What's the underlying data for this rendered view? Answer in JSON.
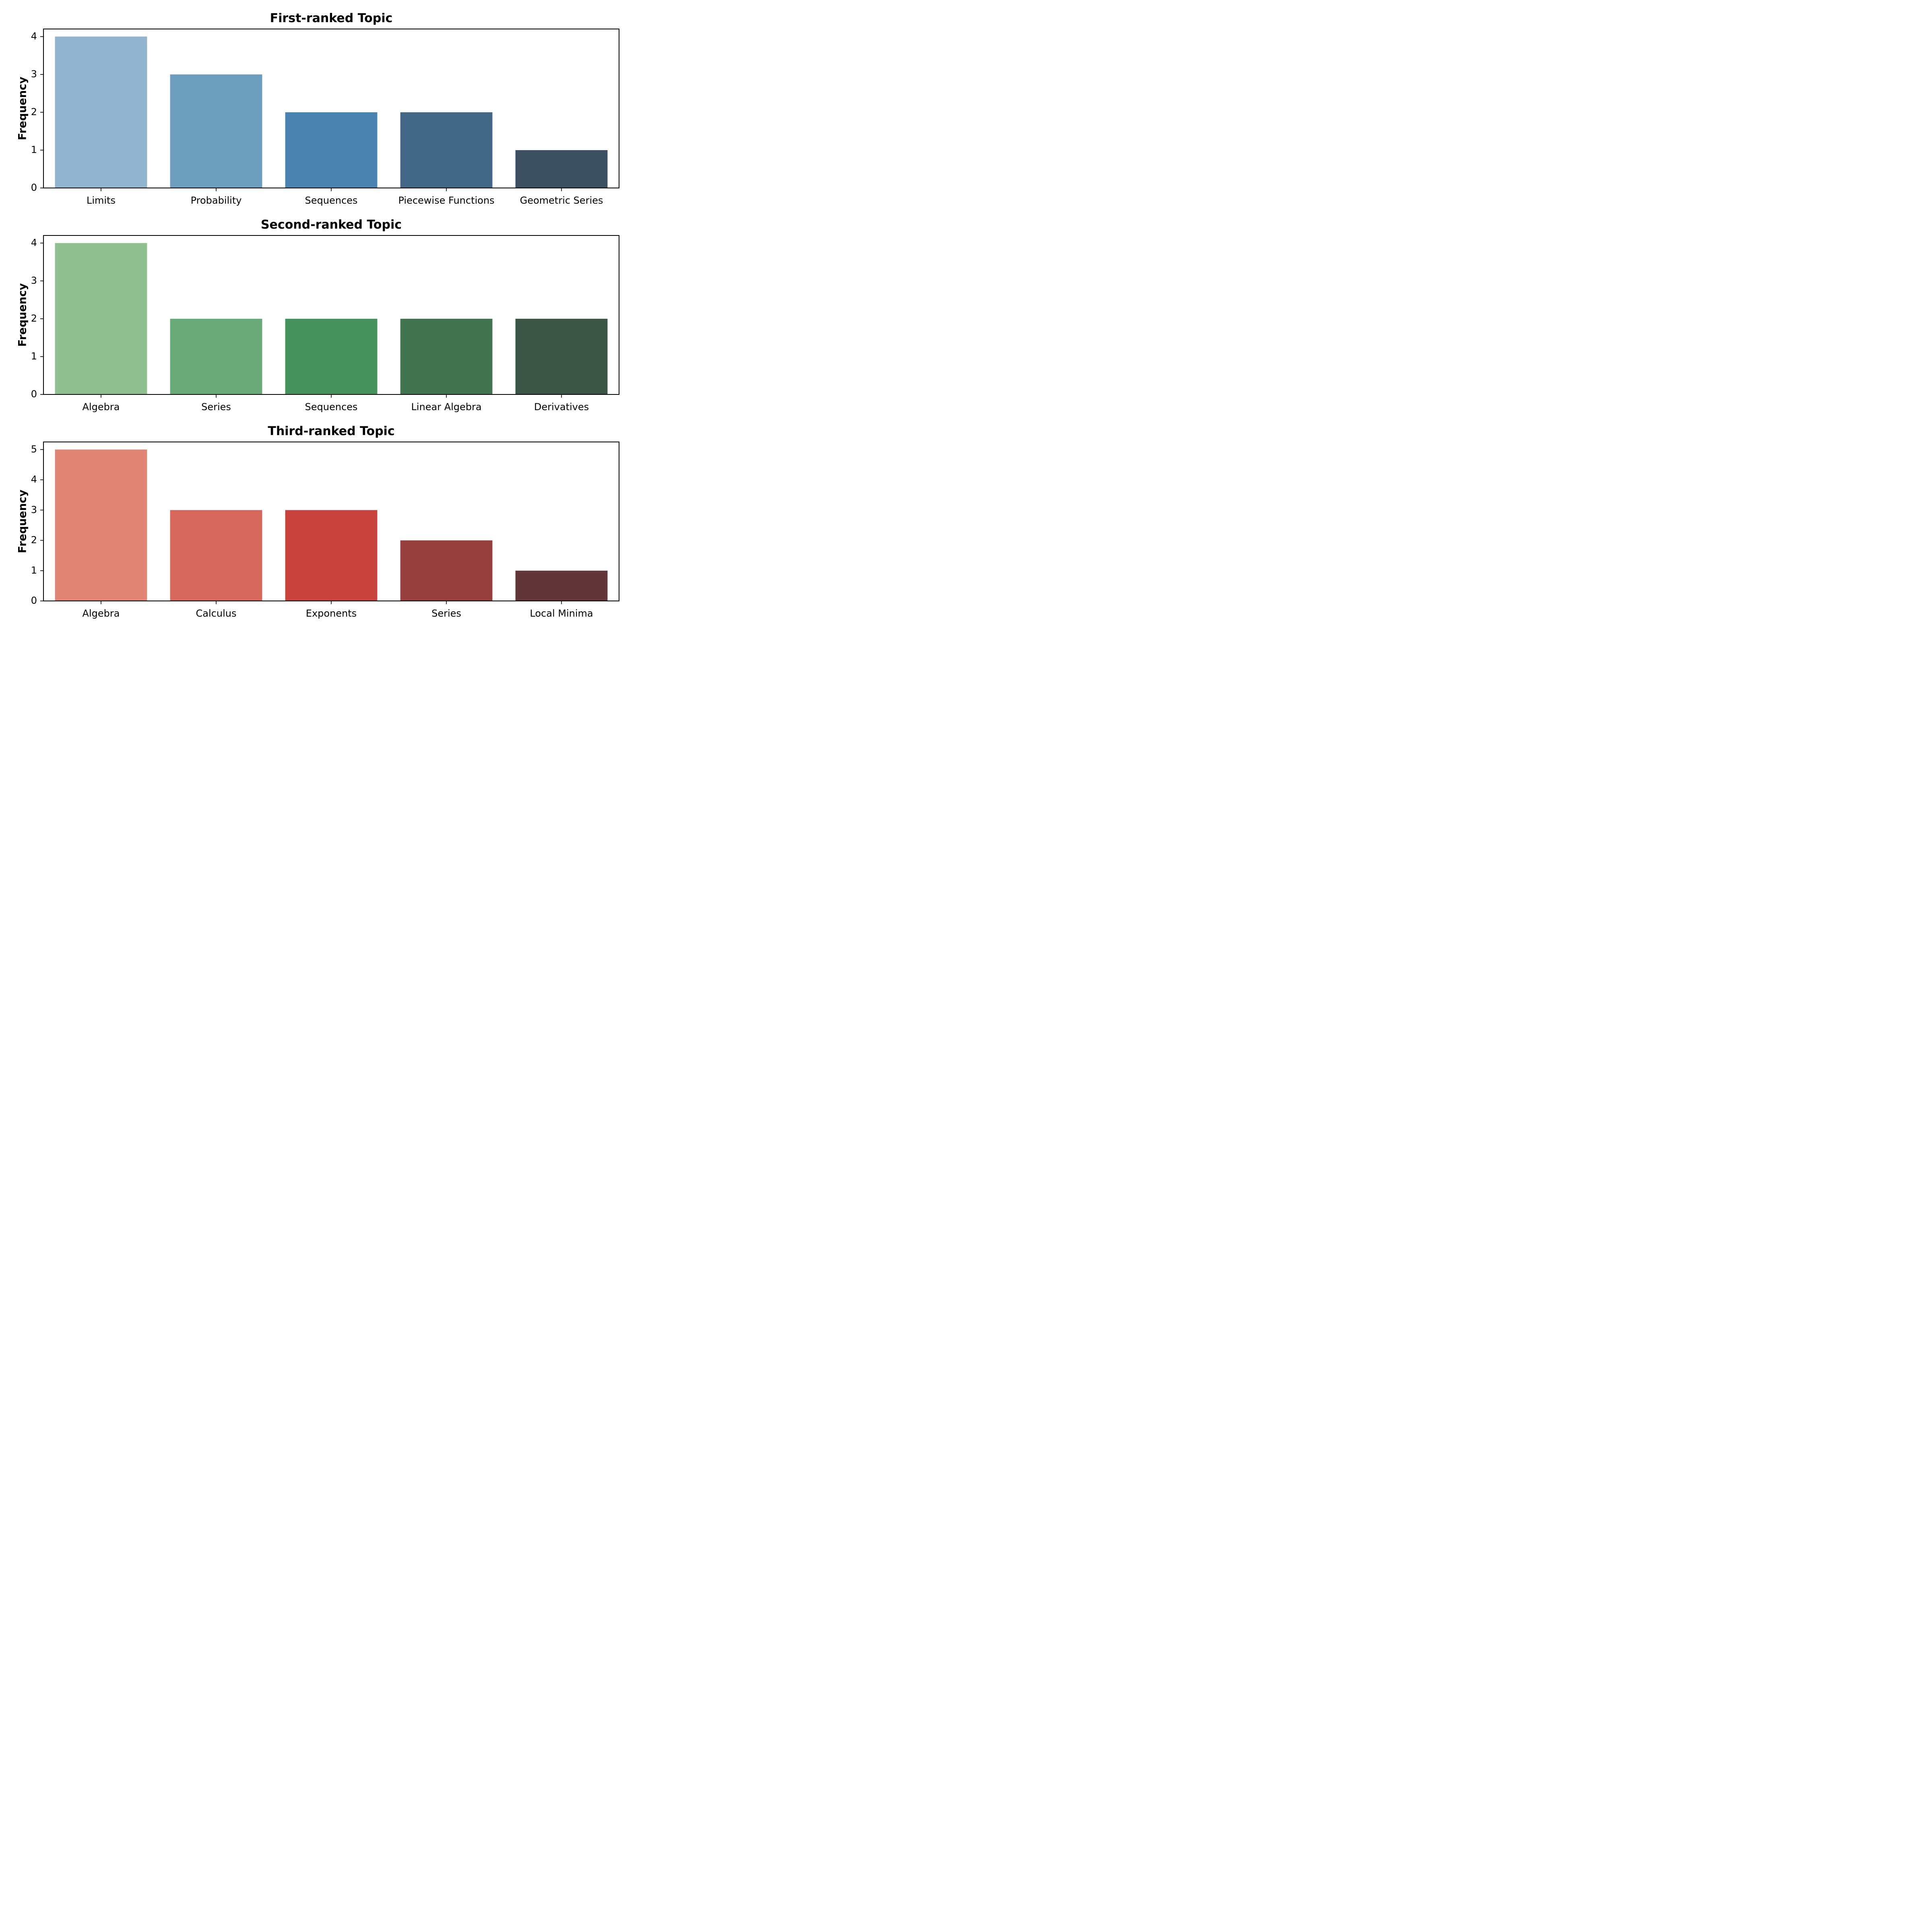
{
  "chart_data": [
    {
      "type": "bar",
      "title": "First-ranked Topic",
      "xlabel": "",
      "ylabel": "Frequency",
      "categories": [
        "Limits",
        "Probability",
        "Sequences",
        "Piecewise Functions",
        "Geometric Series"
      ],
      "values": [
        4,
        3,
        2,
        2,
        1
      ],
      "colors": [
        "#91b5cf",
        "#6d9ebe",
        "#4a83b0",
        "#436885",
        "#3b4f60"
      ],
      "ylim": [
        0,
        4.2
      ],
      "yticks": [
        0,
        1,
        2,
        3,
        4
      ],
      "grid": false
    },
    {
      "type": "bar",
      "title": "Second-ranked Topic",
      "xlabel": "",
      "ylabel": "Frequency",
      "categories": [
        "Algebra",
        "Series",
        "Sequences",
        "Linear Algebra",
        "Derivatives"
      ],
      "values": [
        4,
        2,
        2,
        2,
        2
      ],
      "colors": [
        "#90c08f",
        "#6aaa78",
        "#45925c",
        "#427450",
        "#3a5545"
      ],
      "ylim": [
        0,
        4.2
      ],
      "yticks": [
        0,
        1,
        2,
        3,
        4
      ],
      "grid": false
    },
    {
      "type": "bar",
      "title": "Third-ranked Topic",
      "xlabel": "",
      "ylabel": "Frequency",
      "categories": [
        "Algebra",
        "Calculus",
        "Exponents",
        "Series",
        "Local Minima"
      ],
      "values": [
        5,
        3,
        3,
        2,
        1
      ],
      "colors": [
        "#e08575",
        "#d6675c",
        "#c8433e",
        "#963f3c",
        "#623638"
      ],
      "ylim": [
        0,
        5.25
      ],
      "yticks": [
        0,
        1,
        2,
        3,
        4,
        5
      ],
      "grid": false
    }
  ]
}
